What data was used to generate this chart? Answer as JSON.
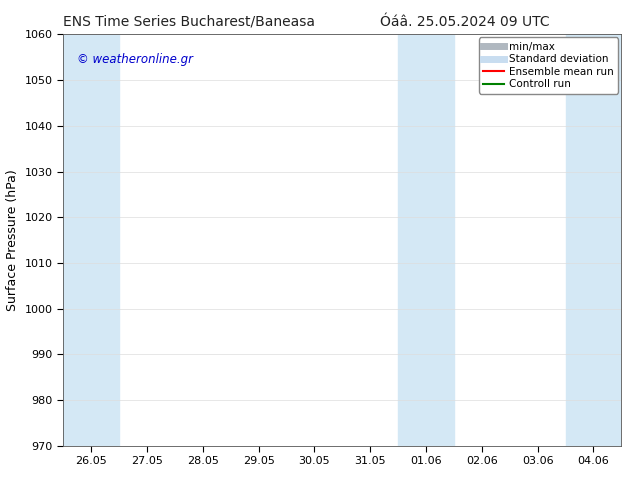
{
  "title_left": "ENS Time Series Bucharest/Baneasa",
  "title_right": "Óáâ. 25.05.2024 09 UTC",
  "ylabel": "Surface Pressure (hPa)",
  "ylim": [
    970,
    1060
  ],
  "yticks": [
    970,
    980,
    990,
    1000,
    1010,
    1020,
    1030,
    1040,
    1050,
    1060
  ],
  "x_tick_labels": [
    "26.05",
    "27.05",
    "28.05",
    "29.05",
    "30.05",
    "31.05",
    "01.06",
    "02.06",
    "03.06",
    "04.06"
  ],
  "x_tick_positions": [
    0,
    1,
    2,
    3,
    4,
    5,
    6,
    7,
    8,
    9
  ],
  "shaded_bands": [
    {
      "x_start": -0.5,
      "x_end": 0.5,
      "color": "#d4e8f5"
    },
    {
      "x_start": 5.5,
      "x_end": 6.5,
      "color": "#d4e8f5"
    },
    {
      "x_start": 8.5,
      "x_end": 9.5,
      "color": "#d4e8f5"
    }
  ],
  "background_color": "#ffffff",
  "plot_bg_color": "#ffffff",
  "legend_entries": [
    {
      "label": "min/max",
      "color": "#b0b8c0",
      "linewidth": 5,
      "linestyle": "-"
    },
    {
      "label": "Standard deviation",
      "color": "#c8ddf0",
      "linewidth": 5,
      "linestyle": "-"
    },
    {
      "label": "Ensemble mean run",
      "color": "#ff0000",
      "linewidth": 1.5,
      "linestyle": "-"
    },
    {
      "label": "Controll run",
      "color": "#008000",
      "linewidth": 1.5,
      "linestyle": "-"
    }
  ],
  "watermark": "© weatheronline.gr",
  "watermark_color": "#0000cc",
  "title_fontsize": 10,
  "axis_label_fontsize": 9,
  "tick_fontsize": 8,
  "legend_fontsize": 7.5,
  "grid_color": "#dddddd",
  "border_color": "#555555",
  "x_min": -0.5,
  "x_max": 9.5
}
